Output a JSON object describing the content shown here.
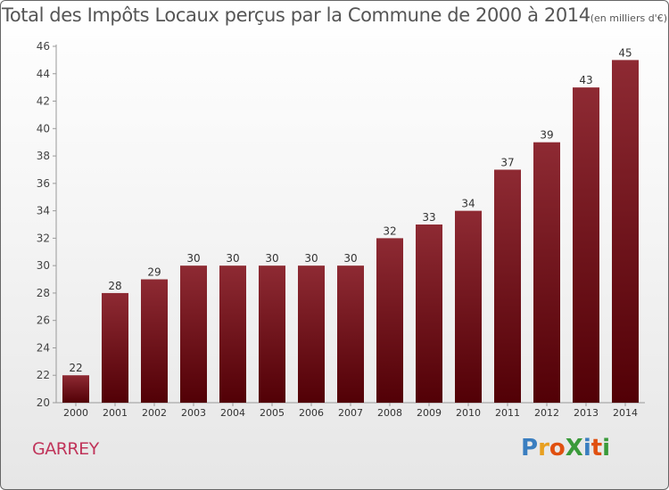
{
  "title": "Total des Impôts Locaux perçus par la Commune de 2000 à 2014",
  "unit": "(en milliers d'€)",
  "commune": "GARREY",
  "logo": {
    "text": "ProXiti",
    "colors": [
      "#3a7ec0",
      "#e8a020",
      "#e05010",
      "#3a9a3a",
      "#3a7ec0",
      "#e05010",
      "#3a9a3a"
    ]
  },
  "chart_data": {
    "type": "bar",
    "title": "Total des Impôts Locaux perçus par la Commune de 2000 à 2014",
    "subtitle": "(en milliers d'€)",
    "xlabel": "",
    "ylabel": "",
    "categories": [
      "2000",
      "2001",
      "2002",
      "2003",
      "2004",
      "2005",
      "2006",
      "2007",
      "2008",
      "2009",
      "2010",
      "2011",
      "2012",
      "2013",
      "2014"
    ],
    "values": [
      22,
      28,
      29,
      30,
      30,
      30,
      30,
      30,
      32,
      33,
      34,
      37,
      39,
      43,
      45
    ],
    "ylim": [
      20,
      46
    ],
    "yticks": [
      20,
      22,
      24,
      26,
      28,
      30,
      32,
      34,
      36,
      38,
      40,
      42,
      44,
      46
    ],
    "grid": false,
    "legend": "none",
    "bar_color": "#7a1c22"
  }
}
